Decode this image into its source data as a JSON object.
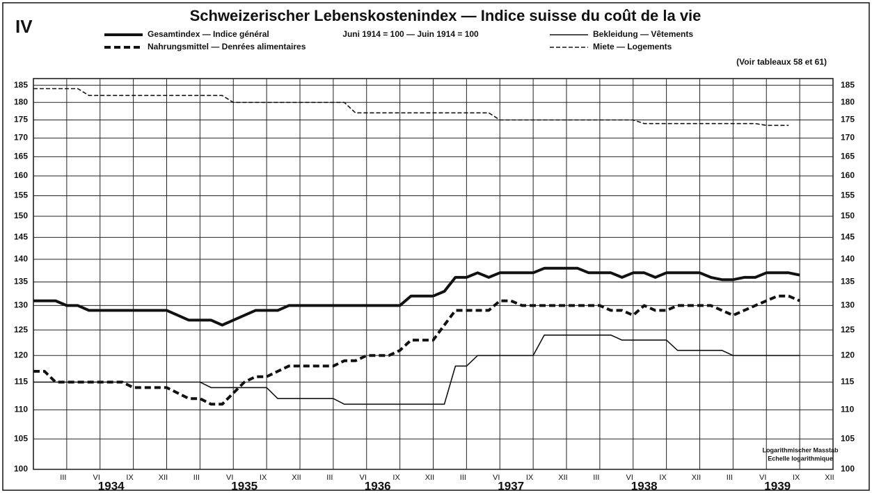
{
  "chart_data": {
    "type": "line",
    "figure_label": "IV",
    "title": "Schweizerischer Lebenskostenindex — Indice suisse du coût de la vie",
    "subtitle": "Juni 1914 = 100 — Juin 1914 = 100",
    "note": "(Voir tableaux 58 et 61)",
    "scale_note": [
      "Logarithmischer Masstab",
      "Echelle logarithmique"
    ],
    "log_scale": true,
    "grid": true,
    "x": [
      "1933-12",
      "1934-01",
      "1934-02",
      "1934-03",
      "1934-04",
      "1934-05",
      "1934-06",
      "1934-07",
      "1934-08",
      "1934-09",
      "1934-10",
      "1934-11",
      "1934-12",
      "1935-01",
      "1935-02",
      "1935-03",
      "1935-04",
      "1935-05",
      "1935-06",
      "1935-07",
      "1935-08",
      "1935-09",
      "1935-10",
      "1935-11",
      "1935-12",
      "1936-01",
      "1936-02",
      "1936-03",
      "1936-04",
      "1936-05",
      "1936-06",
      "1936-07",
      "1936-08",
      "1936-09",
      "1936-10",
      "1936-11",
      "1936-12",
      "1937-01",
      "1937-02",
      "1937-03",
      "1937-04",
      "1937-05",
      "1937-06",
      "1937-07",
      "1937-08",
      "1937-09",
      "1937-10",
      "1937-11",
      "1937-12",
      "1938-01",
      "1938-02",
      "1938-03",
      "1938-04",
      "1938-05",
      "1938-06",
      "1938-07",
      "1938-08",
      "1938-09",
      "1938-10",
      "1938-11",
      "1938-12",
      "1939-01",
      "1939-02",
      "1939-03",
      "1939-04",
      "1939-05",
      "1939-06",
      "1939-07",
      "1939-08",
      "1939-09"
    ],
    "series": [
      {
        "name": "Gesamtindex — Indice général",
        "color": "#111111",
        "weight": "thick",
        "style": "solid",
        "values": [
          131,
          131,
          131,
          130,
          130,
          129,
          129,
          129,
          129,
          129,
          129,
          129,
          129,
          128,
          127,
          127,
          127,
          126,
          127,
          128,
          129,
          129,
          129,
          130,
          130,
          130,
          130,
          130,
          130,
          130,
          130,
          130,
          130,
          130,
          132,
          132,
          132,
          133,
          136,
          136,
          137,
          136,
          137,
          137,
          137,
          137,
          138,
          138,
          138,
          138,
          137,
          137,
          137,
          136,
          137,
          137,
          136,
          137,
          137,
          137,
          137,
          136,
          135.5,
          135.5,
          136,
          136,
          137,
          137,
          137,
          136.5
        ]
      },
      {
        "name": "Nahrungsmittel — Denrées alimentaires",
        "color": "#111111",
        "weight": "thick",
        "style": "dashed",
        "values": [
          117,
          117,
          115,
          115,
          115,
          115,
          115,
          115,
          115,
          114,
          114,
          114,
          114,
          113,
          112,
          112,
          111,
          111,
          113,
          115,
          116,
          116,
          117,
          118,
          118,
          118,
          118,
          118,
          119,
          119,
          120,
          120,
          120,
          121,
          123,
          123,
          123,
          126,
          129,
          129,
          129,
          129,
          131,
          131,
          130,
          130,
          130,
          130,
          130,
          130,
          130,
          130,
          129,
          129,
          128,
          130,
          129,
          129,
          130,
          130,
          130,
          130,
          129,
          128,
          129,
          130,
          131,
          132,
          132,
          131
        ]
      },
      {
        "name": "Bekleidung — Vêtements",
        "color": "#111111",
        "weight": "thin",
        "style": "solid",
        "values": [
          115,
          115,
          115,
          115,
          115,
          115,
          115,
          115,
          115,
          115,
          115,
          115,
          115,
          115,
          115,
          115,
          114,
          114,
          114,
          114,
          114,
          114,
          112,
          112,
          112,
          112,
          112,
          112,
          111,
          111,
          111,
          111,
          111,
          111,
          111,
          111,
          111,
          111,
          118,
          118,
          120,
          120,
          120,
          120,
          120,
          120,
          124,
          124,
          124,
          124,
          124,
          124,
          124,
          123,
          123,
          123,
          123,
          123,
          121,
          121,
          121,
          121,
          121,
          120,
          120,
          120,
          120,
          120,
          120,
          120
        ]
      },
      {
        "name": "Miete — Logements",
        "color": "#111111",
        "weight": "thin",
        "style": "dashed",
        "values": [
          184,
          184,
          184,
          184,
          184,
          182,
          182,
          182,
          182,
          182,
          182,
          182,
          182,
          182,
          182,
          182,
          182,
          182,
          180,
          180,
          180,
          180,
          180,
          180,
          180,
          180,
          180,
          180,
          180,
          177,
          177,
          177,
          177,
          177,
          177,
          177,
          177,
          177,
          177,
          177,
          177,
          177,
          175,
          175,
          175,
          175,
          175,
          175,
          175,
          175,
          175,
          175,
          175,
          175,
          175,
          174,
          174,
          174,
          174,
          174,
          174,
          174,
          174,
          174,
          174,
          174,
          173.5,
          173.5,
          173.5,
          null
        ]
      }
    ],
    "xlim": [
      "1933-12",
      "1939-12"
    ],
    "xticks": [
      {
        "value": "1934-03",
        "label": "III"
      },
      {
        "value": "1934-06",
        "label": "VI"
      },
      {
        "value": "1934-09",
        "label": "IX"
      },
      {
        "value": "1934-12",
        "label": "XII"
      },
      {
        "value": "1935-03",
        "label": "III"
      },
      {
        "value": "1935-06",
        "label": "VI"
      },
      {
        "value": "1935-09",
        "label": "IX"
      },
      {
        "value": "1935-12",
        "label": "XII"
      },
      {
        "value": "1936-03",
        "label": "III"
      },
      {
        "value": "1936-06",
        "label": "VI"
      },
      {
        "value": "1936-09",
        "label": "IX"
      },
      {
        "value": "1936-12",
        "label": "XII"
      },
      {
        "value": "1937-03",
        "label": "III"
      },
      {
        "value": "1937-06",
        "label": "VI"
      },
      {
        "value": "1937-09",
        "label": "IX"
      },
      {
        "value": "1937-12",
        "label": "XII"
      },
      {
        "value": "1938-03",
        "label": "III"
      },
      {
        "value": "1938-06",
        "label": "VI"
      },
      {
        "value": "1938-09",
        "label": "IX"
      },
      {
        "value": "1938-12",
        "label": "XII"
      },
      {
        "value": "1939-03",
        "label": "III"
      },
      {
        "value": "1939-06",
        "label": "VI"
      },
      {
        "value": "1939-09",
        "label": "IX"
      },
      {
        "value": "1939-12",
        "label": "XII"
      }
    ],
    "year_labels": [
      "1934",
      "1935",
      "1936",
      "1937",
      "1938",
      "1939"
    ],
    "ylim": [
      100,
      187
    ],
    "yticks": [
      100,
      105,
      110,
      115,
      120,
      125,
      130,
      135,
      140,
      145,
      150,
      155,
      160,
      165,
      170,
      175,
      180,
      185
    ]
  }
}
